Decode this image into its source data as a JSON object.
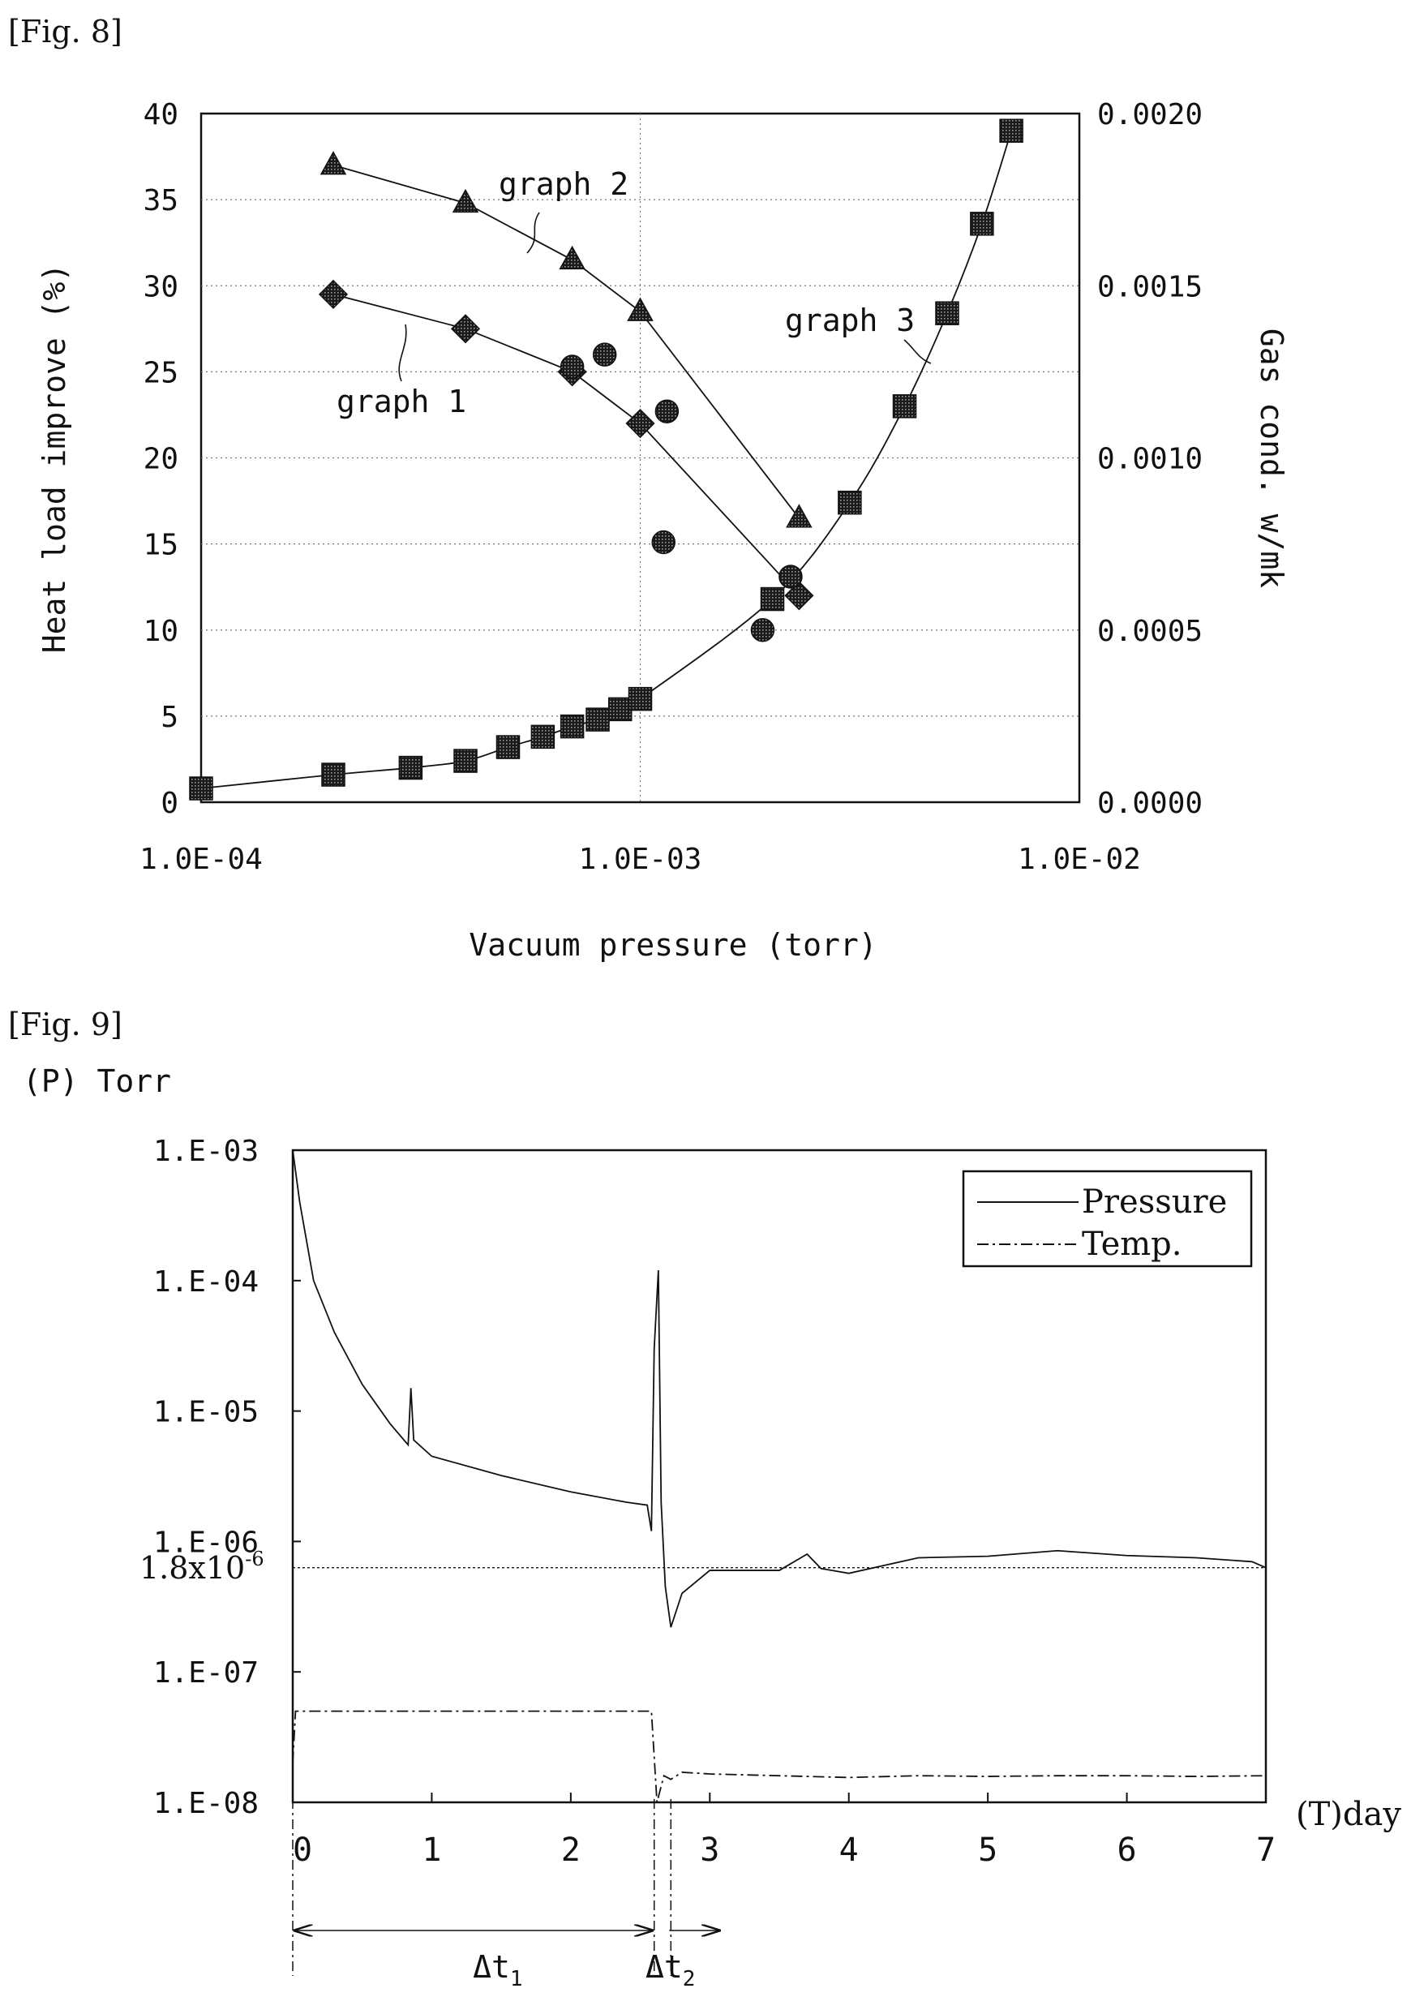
{
  "figures": {
    "fig8_label": "[Fig. 8]",
    "fig9_label": "[Fig. 9]"
  },
  "chart_data": [
    {
      "type": "scatter",
      "figure": "[Fig. 8]",
      "xlabel": "Vacuum pressure (torr)",
      "ylabel_left": "Heat load improve (%)",
      "ylabel_right": "Gas cond. w/mk",
      "xscale": "log",
      "xlim": [
        0.0001,
        0.01
      ],
      "ylim_left": [
        0,
        40
      ],
      "ylim_right": [
        0,
        0.002
      ],
      "x_ticks": [
        "1.0E-04",
        "1.0E-03",
        "1.0E-02"
      ],
      "y_ticks_left": [
        "0",
        "5",
        "10",
        "15",
        "20",
        "25",
        "30",
        "35",
        "40"
      ],
      "y_ticks_right": [
        "0.0000",
        "0.0005",
        "0.0010",
        "0.0015",
        "0.0020"
      ],
      "grid": true,
      "series": [
        {
          "name": "graph 1",
          "marker": "diamond",
          "axis": "left",
          "x": [
            0.0002,
            0.0004,
            0.0007,
            0.001,
            0.0023
          ],
          "y": [
            29.5,
            27.5,
            25.0,
            22.0,
            12.0
          ]
        },
        {
          "name": "graph 2",
          "marker": "triangle",
          "axis": "left",
          "x": [
            0.0002,
            0.0004,
            0.0007,
            0.001,
            0.0023
          ],
          "y": [
            37.0,
            34.8,
            31.5,
            28.5,
            16.5
          ]
        },
        {
          "name": "graph 3",
          "marker": "square",
          "axis": "right",
          "x": [
            0.0001,
            0.0002,
            0.0003,
            0.0004,
            0.0005,
            0.0006,
            0.0007,
            0.0008,
            0.0009,
            0.001,
            0.002,
            0.003,
            0.004,
            0.005,
            0.006,
            0.007
          ],
          "y": [
            4e-05,
            8e-05,
            0.0001,
            0.00012,
            0.00016,
            0.00019,
            0.00022,
            0.00024,
            0.00027,
            0.0003,
            0.00059,
            0.00087,
            0.00115,
            0.00142,
            0.00168,
            0.00195
          ]
        },
        {
          "marker": "circle",
          "axis": "left",
          "x": [
            0.0007,
            0.00083,
            0.00115,
            0.00113,
            0.0019,
            0.0022
          ],
          "y": [
            25.3,
            26.0,
            22.7,
            15.1,
            10.0,
            13.1
          ]
        }
      ],
      "annotations": [
        "graph 1",
        "graph 2",
        "graph 3"
      ]
    },
    {
      "type": "line",
      "figure": "[Fig. 9]",
      "y_unit_label": "(P) Torr",
      "x_unit_label": "(T)day",
      "xlim": [
        0,
        7
      ],
      "ylim": [
        1e-08,
        0.001
      ],
      "yscale": "log",
      "x_ticks": [
        "0",
        "1",
        "2",
        "3",
        "4",
        "5",
        "6",
        "7"
      ],
      "y_ticks": [
        "1.E-03",
        "1.E-04",
        "1.E-05",
        "1.E-06",
        "1.E-07",
        "1.E-08"
      ],
      "reference_line_label": "1.8x10-6",
      "legend_position": "top-right",
      "series": [
        {
          "name": "Pressure",
          "style": "solid",
          "x": [
            0.0,
            0.05,
            0.15,
            0.3,
            0.5,
            0.7,
            0.83,
            0.85,
            0.87,
            1.0,
            1.5,
            2.0,
            2.4,
            2.55,
            2.58,
            2.6,
            2.63,
            2.65,
            2.68,
            2.72,
            2.8,
            3.0,
            3.5,
            3.7,
            3.8,
            4.0,
            4.5,
            5.0,
            5.5,
            6.0,
            6.5,
            6.9,
            7.0
          ],
          "y": [
            0.001,
            0.0004,
            0.0001,
            4e-05,
            1.6e-05,
            8e-06,
            5.5e-06,
            1.5e-05,
            6e-06,
            4.5e-06,
            3.2e-06,
            2.4e-06,
            2e-06,
            1.9e-06,
            1.2e-06,
            3e-05,
            0.00012,
            2e-06,
            4.5e-07,
            2.2e-07,
            4e-07,
            6e-07,
            6e-07,
            8e-07,
            6.2e-07,
            5.7e-07,
            7.5e-07,
            7.7e-07,
            8.5e-07,
            7.8e-07,
            7.5e-07,
            7e-07,
            6.3e-07
          ]
        },
        {
          "name": "Temp.",
          "style": "dash-dot",
          "x": [
            0.0,
            0.02,
            0.1,
            0.5,
            1.0,
            1.5,
            2.0,
            2.5,
            2.58,
            2.62,
            2.67,
            2.72,
            2.8,
            3.0,
            3.5,
            4.0,
            4.5,
            5.0,
            5.5,
            6.0,
            6.5,
            7.0
          ],
          "y": [
            2e-08,
            5e-08,
            5e-08,
            5e-08,
            5e-08,
            5e-08,
            5e-08,
            5e-08,
            5e-08,
            1e-08,
            1.6e-08,
            1.5e-08,
            1.7e-08,
            1.65e-08,
            1.6e-08,
            1.55e-08,
            1.6e-08,
            1.58e-08,
            1.6e-08,
            1.6e-08,
            1.58e-08,
            1.6e-08
          ]
        }
      ],
      "intervals": [
        {
          "label": "Δt1",
          "x_start": 0,
          "x_end": 2.6
        },
        {
          "label": "Δt2",
          "x_start": 2.6,
          "x_end": 2.72
        }
      ]
    }
  ]
}
